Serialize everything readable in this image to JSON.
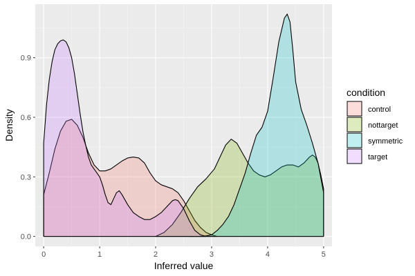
{
  "chart_data": {
    "type": "area",
    "xlabel": "Inferred value",
    "ylabel": "Density",
    "xlim": [
      -0.15,
      5.15
    ],
    "ylim": [
      -0.05,
      1.17
    ],
    "x_ticks": [
      0,
      1,
      2,
      3,
      4,
      5
    ],
    "x_tick_labels": [
      "0",
      "1",
      "2",
      "3",
      "4",
      "5"
    ],
    "y_ticks": [
      0.0,
      0.3,
      0.6,
      0.9
    ],
    "y_tick_labels": [
      "0.0",
      "0.3",
      "0.6",
      "0.9"
    ],
    "grid": true,
    "legend": {
      "title": "condition",
      "position": "right"
    },
    "series": [
      {
        "name": "control",
        "color": "#F8766D",
        "points": [
          [
            0,
            0.21
          ],
          [
            0.1,
            0.32
          ],
          [
            0.2,
            0.44
          ],
          [
            0.3,
            0.53
          ],
          [
            0.4,
            0.58
          ],
          [
            0.5,
            0.59
          ],
          [
            0.6,
            0.56
          ],
          [
            0.7,
            0.5
          ],
          [
            0.8,
            0.42
          ],
          [
            0.9,
            0.36
          ],
          [
            1.0,
            0.33
          ],
          [
            1.1,
            0.33
          ],
          [
            1.2,
            0.34
          ],
          [
            1.3,
            0.36
          ],
          [
            1.4,
            0.38
          ],
          [
            1.5,
            0.395
          ],
          [
            1.6,
            0.4
          ],
          [
            1.7,
            0.395
          ],
          [
            1.8,
            0.37
          ],
          [
            1.9,
            0.32
          ],
          [
            2.0,
            0.28
          ],
          [
            2.1,
            0.26
          ],
          [
            2.2,
            0.25
          ],
          [
            2.3,
            0.24
          ],
          [
            2.4,
            0.22
          ],
          [
            2.5,
            0.18
          ],
          [
            2.6,
            0.13
          ],
          [
            2.7,
            0.08
          ],
          [
            2.8,
            0.045
          ],
          [
            2.9,
            0.02
          ],
          [
            3.0,
            0.008
          ],
          [
            3.1,
            0.0
          ]
        ]
      },
      {
        "name": "nottarget",
        "color": "#7CAE00",
        "points": [
          [
            2.0,
            0.0
          ],
          [
            2.15,
            0.02
          ],
          [
            2.3,
            0.06
          ],
          [
            2.45,
            0.12
          ],
          [
            2.6,
            0.19
          ],
          [
            2.75,
            0.25
          ],
          [
            2.9,
            0.29
          ],
          [
            3.05,
            0.34
          ],
          [
            3.15,
            0.4
          ],
          [
            3.25,
            0.46
          ],
          [
            3.35,
            0.49
          ],
          [
            3.45,
            0.47
          ],
          [
            3.55,
            0.42
          ],
          [
            3.65,
            0.37
          ],
          [
            3.75,
            0.33
          ],
          [
            3.85,
            0.31
          ],
          [
            3.95,
            0.3
          ],
          [
            4.05,
            0.31
          ],
          [
            4.15,
            0.33
          ],
          [
            4.25,
            0.35
          ],
          [
            4.35,
            0.36
          ],
          [
            4.45,
            0.36
          ],
          [
            4.55,
            0.35
          ],
          [
            4.65,
            0.37
          ],
          [
            4.75,
            0.4
          ],
          [
            4.8,
            0.41
          ],
          [
            4.85,
            0.4
          ],
          [
            4.9,
            0.37
          ],
          [
            4.95,
            0.31
          ],
          [
            5.0,
            0.24
          ]
        ]
      },
      {
        "name": "symmetric",
        "color": "#00BFC4",
        "points": [
          [
            2.6,
            0.0
          ],
          [
            2.85,
            0.0
          ],
          [
            3.0,
            0.008
          ],
          [
            3.1,
            0.03
          ],
          [
            3.2,
            0.06
          ],
          [
            3.3,
            0.1
          ],
          [
            3.4,
            0.16
          ],
          [
            3.5,
            0.24
          ],
          [
            3.6,
            0.32
          ],
          [
            3.7,
            0.42
          ],
          [
            3.8,
            0.51
          ],
          [
            3.9,
            0.55
          ],
          [
            4.0,
            0.63
          ],
          [
            4.1,
            0.8
          ],
          [
            4.2,
            0.98
          ],
          [
            4.3,
            1.1
          ],
          [
            4.35,
            1.12
          ],
          [
            4.4,
            1.08
          ],
          [
            4.45,
            0.94
          ],
          [
            4.5,
            0.78
          ],
          [
            4.6,
            0.64
          ],
          [
            4.7,
            0.56
          ],
          [
            4.8,
            0.47
          ],
          [
            4.9,
            0.37
          ],
          [
            5.0,
            0.22
          ]
        ]
      },
      {
        "name": "target",
        "color": "#C77CFF",
        "points": [
          [
            0,
            0.47
          ],
          [
            0.05,
            0.66
          ],
          [
            0.1,
            0.79
          ],
          [
            0.15,
            0.88
          ],
          [
            0.2,
            0.94
          ],
          [
            0.25,
            0.97
          ],
          [
            0.3,
            0.985
          ],
          [
            0.35,
            0.99
          ],
          [
            0.4,
            0.98
          ],
          [
            0.45,
            0.95
          ],
          [
            0.5,
            0.9
          ],
          [
            0.55,
            0.82
          ],
          [
            0.6,
            0.72
          ],
          [
            0.65,
            0.62
          ],
          [
            0.7,
            0.53
          ],
          [
            0.75,
            0.46
          ],
          [
            0.8,
            0.4
          ],
          [
            0.85,
            0.36
          ],
          [
            0.9,
            0.34
          ],
          [
            1.0,
            0.3
          ],
          [
            1.05,
            0.26
          ],
          [
            1.1,
            0.21
          ],
          [
            1.15,
            0.17
          ],
          [
            1.2,
            0.16
          ],
          [
            1.25,
            0.19
          ],
          [
            1.3,
            0.22
          ],
          [
            1.35,
            0.23
          ],
          [
            1.4,
            0.21
          ],
          [
            1.5,
            0.16
          ],
          [
            1.6,
            0.12
          ],
          [
            1.7,
            0.1
          ],
          [
            1.8,
            0.085
          ],
          [
            1.9,
            0.085
          ],
          [
            2.0,
            0.1
          ],
          [
            2.1,
            0.12
          ],
          [
            2.2,
            0.15
          ],
          [
            2.3,
            0.18
          ],
          [
            2.35,
            0.185
          ],
          [
            2.4,
            0.18
          ],
          [
            2.5,
            0.14
          ],
          [
            2.6,
            0.08
          ],
          [
            2.7,
            0.03
          ],
          [
            2.8,
            0.008
          ],
          [
            2.9,
            0.0
          ]
        ]
      }
    ]
  }
}
